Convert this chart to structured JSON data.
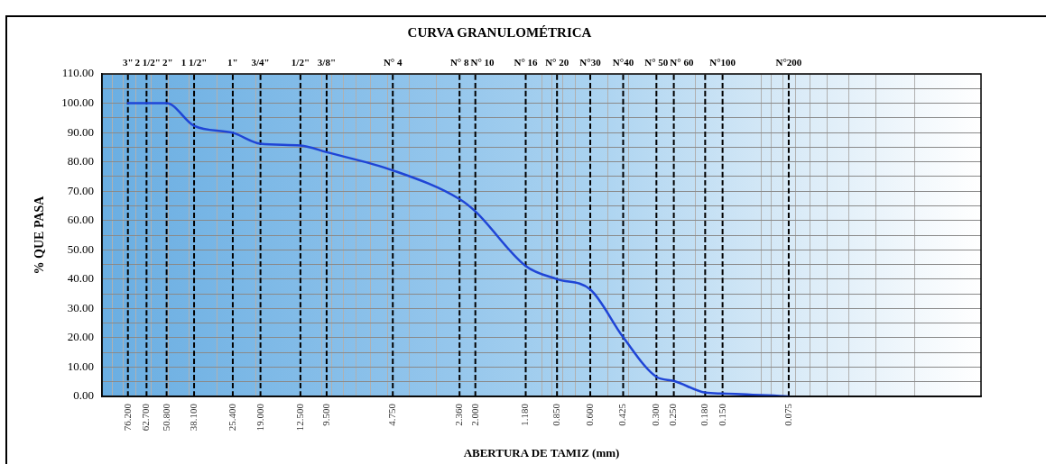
{
  "chart_data": {
    "type": "line",
    "title": "CURVA GRANULOMÉTRICA",
    "xlabel": "ABERTURA DE TAMIZ (mm)",
    "ylabel": "% QUE PASA",
    "x": [
      76.2,
      62.7,
      50.8,
      38.1,
      25.4,
      19.0,
      12.5,
      9.5,
      4.75,
      2.36,
      2.0,
      1.18,
      0.85,
      0.6,
      0.425,
      0.3,
      0.25,
      0.18,
      0.15,
      0.075
    ],
    "series": [
      {
        "color": "#1f45d6",
        "values": [
          100,
          100,
          100,
          92.3,
          89.9,
          86.2,
          85.6,
          83.3,
          77.1,
          67.3,
          63.1,
          44.5,
          40.0,
          36.5,
          20.2,
          6.7,
          5.3,
          1.3,
          1.0,
          0
        ]
      },
      {
        "type": "line",
        "x": [
          76.2,
          76.2
        ],
        "values": [
          0,
          110
        ],
        "color": "#000000",
        "line_style": "dashed"
      },
      {
        "type": "line",
        "x": [
          62.7,
          62.7
        ],
        "values": [
          0,
          110
        ],
        "color": "#000000",
        "line_style": "dashed"
      },
      {
        "type": "line",
        "x": [
          50.8,
          50.8
        ],
        "values": [
          0,
          110
        ],
        "color": "#000000",
        "line_style": "dashed"
      },
      {
        "type": "line",
        "x": [
          38.1,
          38.1
        ],
        "values": [
          0,
          110
        ],
        "color": "#000000",
        "line_style": "dashed"
      },
      {
        "type": "line",
        "x": [
          25.4,
          25.4
        ],
        "values": [
          0,
          110
        ],
        "color": "#000000",
        "line_style": "dashed"
      },
      {
        "type": "line",
        "x": [
          19,
          19
        ],
        "values": [
          0,
          110
        ],
        "color": "#000000",
        "line_style": "dashed"
      },
      {
        "type": "line",
        "x": [
          12.5,
          12.5
        ],
        "values": [
          0,
          110
        ],
        "color": "#000000",
        "line_style": "dashed"
      },
      {
        "type": "line",
        "x": [
          9.5,
          9.5
        ],
        "values": [
          0,
          110
        ],
        "color": "#000000",
        "line_style": "dashed"
      },
      {
        "type": "line",
        "x": [
          4.75,
          4.75
        ],
        "values": [
          0,
          110
        ],
        "color": "#000000",
        "line_style": "dashed"
      },
      {
        "type": "line",
        "x": [
          2.36,
          2.36
        ],
        "values": [
          0,
          110
        ],
        "color": "#000000",
        "line_style": "dashed"
      },
      {
        "type": "line",
        "x": [
          2,
          2
        ],
        "values": [
          0,
          110
        ],
        "color": "#000000",
        "line_style": "dashed"
      },
      {
        "type": "line",
        "x": [
          1.18,
          1.18
        ],
        "values": [
          0,
          110
        ],
        "color": "#000000",
        "line_style": "dashed"
      },
      {
        "type": "line",
        "x": [
          0.85,
          0.85
        ],
        "values": [
          0,
          110
        ],
        "color": "#000000",
        "line_style": "dashed"
      },
      {
        "type": "line",
        "x": [
          0.6,
          0.6
        ],
        "values": [
          0,
          110
        ],
        "color": "#000000",
        "line_style": "dashed"
      },
      {
        "type": "line",
        "x": [
          0.425,
          0.425
        ],
        "values": [
          0,
          110
        ],
        "color": "#000000",
        "line_style": "dashed"
      },
      {
        "type": "line",
        "x": [
          0.3,
          0.3
        ],
        "values": [
          0,
          110
        ],
        "color": "#000000",
        "line_style": "dashed"
      },
      {
        "type": "line",
        "x": [
          0.25,
          0.25
        ],
        "values": [
          0,
          110
        ],
        "color": "#000000",
        "line_style": "dashed"
      },
      {
        "type": "line",
        "x": [
          0.18,
          0.18
        ],
        "values": [
          0,
          110
        ],
        "color": "#000000",
        "line_style": "dashed"
      },
      {
        "type": "line",
        "x": [
          0.15,
          0.15
        ],
        "values": [
          0,
          110
        ],
        "color": "#000000",
        "line_style": "dashed"
      },
      {
        "type": "line",
        "x": [
          0.075,
          0.075
        ],
        "values": [
          0,
          110
        ],
        "color": "#000000",
        "line_style": "dashed"
      }
    ],
    "log": "x",
    "xlim": [
      100,
      0.01
    ],
    "xticks": [
      {
        "value": 90,
        "label": null
      },
      {
        "value": 80,
        "label": null
      },
      {
        "value": 76.2,
        "label": "76.200"
      },
      {
        "value": 70,
        "label": null
      },
      {
        "value": 62.7,
        "label": "62.700"
      },
      {
        "value": 60,
        "label": null
      },
      {
        "value": 50.8,
        "label": "50.800"
      },
      {
        "value": 50,
        "label": null
      },
      {
        "value": 40,
        "label": null
      },
      {
        "value": 38.1,
        "label": "38.100"
      },
      {
        "value": 30,
        "label": null
      },
      {
        "value": 25.4,
        "label": "25.400"
      },
      {
        "value": 20,
        "label": null
      },
      {
        "value": 19,
        "label": "19.000"
      },
      {
        "value": 12.5,
        "label": "12.500"
      },
      {
        "value": 10,
        "label": null
      },
      {
        "value": 9.5,
        "label": "9.500"
      },
      {
        "value": 9,
        "label": null
      },
      {
        "value": 8,
        "label": null
      },
      {
        "value": 7,
        "label": null
      },
      {
        "value": 6,
        "label": null
      },
      {
        "value": 5,
        "label": null
      },
      {
        "value": 4.75,
        "label": "4.750"
      },
      {
        "value": 4,
        "label": null
      },
      {
        "value": 3,
        "label": null
      },
      {
        "value": 2.36,
        "label": "2.360"
      },
      {
        "value": 2,
        "label": "2.000"
      },
      {
        "value": 1.18,
        "label": "1.180"
      },
      {
        "value": 1,
        "label": null
      },
      {
        "value": 0.9,
        "label": null
      },
      {
        "value": 0.85,
        "label": "0.850"
      },
      {
        "value": 0.8,
        "label": null
      },
      {
        "value": 0.7,
        "label": null
      },
      {
        "value": 0.6,
        "label": "0.600"
      },
      {
        "value": 0.5,
        "label": null
      },
      {
        "value": 0.425,
        "label": "0.425"
      },
      {
        "value": 0.4,
        "label": null
      },
      {
        "value": 0.3,
        "label": "0.300"
      },
      {
        "value": 0.25,
        "label": "0.250"
      },
      {
        "value": 0.2,
        "label": null
      },
      {
        "value": 0.18,
        "label": "0.180"
      },
      {
        "value": 0.15,
        "label": "0.150"
      },
      {
        "value": 0.1,
        "label": null
      },
      {
        "value": 0.09,
        "label": null
      },
      {
        "value": 0.08,
        "label": null
      },
      {
        "value": 0.075,
        "label": "0.075"
      },
      {
        "value": 0.07,
        "label": null
      },
      {
        "value": 0.06,
        "label": null
      },
      {
        "value": 0.05,
        "label": null
      },
      {
        "value": 0.04,
        "label": null
      },
      {
        "value": 0.03,
        "label": null
      },
      {
        "value": 0.02,
        "label": null
      }
    ],
    "ylim": [
      0,
      110
    ],
    "yticks": [
      {
        "value": 0,
        "label": "0.00"
      },
      {
        "value": 5,
        "label": null
      },
      {
        "value": 10,
        "label": "10.00"
      },
      {
        "value": 15,
        "label": null
      },
      {
        "value": 20,
        "label": "20.00"
      },
      {
        "value": 25,
        "label": null
      },
      {
        "value": 30,
        "label": "30.00"
      },
      {
        "value": 35,
        "label": null
      },
      {
        "value": 40,
        "label": "40.00"
      },
      {
        "value": 45,
        "label": null
      },
      {
        "value": 50,
        "label": "50.00"
      },
      {
        "value": 55,
        "label": null
      },
      {
        "value": 60,
        "label": "60.00"
      },
      {
        "value": 65,
        "label": null
      },
      {
        "value": 70,
        "label": "70.00"
      },
      {
        "value": 75,
        "label": null
      },
      {
        "value": 80,
        "label": "80.00"
      },
      {
        "value": 85,
        "label": null
      },
      {
        "value": 90,
        "label": "90.00"
      },
      {
        "value": 95,
        "label": null
      },
      {
        "value": 100,
        "label": "100.00"
      },
      {
        "value": 105,
        "label": null
      },
      {
        "value": 110,
        "label": "110.00"
      }
    ],
    "grid": true,
    "legend": false,
    "marker": "none",
    "line_style": "solid",
    "annotations": [
      {
        "text": "3\"",
        "x": 76.2,
        "y": 110
      },
      {
        "text": "2 1/2\"",
        "x": 62.7,
        "y": 110
      },
      {
        "text": "2\"",
        "x": 50.8,
        "y": 110
      },
      {
        "text": "1 1/2\"",
        "x": 38.1,
        "y": 110
      },
      {
        "text": "1\"",
        "x": 25.4,
        "y": 110
      },
      {
        "text": "3/4\"",
        "x": 19,
        "y": 110
      },
      {
        "text": "1/2\"",
        "x": 12.5,
        "y": 110
      },
      {
        "text": "3/8\"",
        "x": 9.5,
        "y": 110
      },
      {
        "text": "N° 4",
        "x": 4.75,
        "y": 110
      },
      {
        "text": "N° 8",
        "x": 2.36,
        "y": 110
      },
      {
        "text": "N° 10",
        "x": 2,
        "y": 110
      },
      {
        "text": "N° 16",
        "x": 1.18,
        "y": 110
      },
      {
        "text": "N° 20",
        "x": 0.85,
        "y": 110
      },
      {
        "text": "N°30",
        "x": 0.6,
        "y": 110
      },
      {
        "text": "N°40",
        "x": 0.425,
        "y": 110
      },
      {
        "text": "N° 50",
        "x": 0.3,
        "y": 110
      },
      {
        "text": "N° 60",
        "x": 0.25,
        "y": 110
      },
      {
        "text": "N°100",
        "x": 0.15,
        "y": 110
      },
      {
        "text": "N°200",
        "x": 0.075,
        "y": 110
      }
    ]
  }
}
